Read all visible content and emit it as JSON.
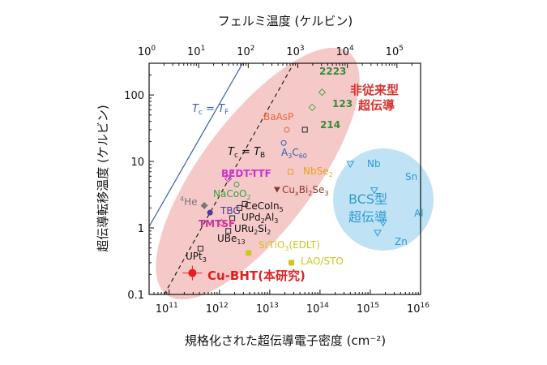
{
  "chart_data": {
    "type": "scatter",
    "title": "",
    "xlabel": "規格化された超伝導電子密度 (cm⁻²)",
    "ylabel": "超伝導転移温度 (ケルビン)",
    "top_xlabel": "フェルミ温度 (ケルビン)",
    "x_scale": "log",
    "y_scale": "log",
    "xlim": [
      40000000000.0,
      1e+16
    ],
    "ylim": [
      0.1,
      300
    ],
    "top_xlim": [
      1,
      300000
    ],
    "x_ticks": [
      {
        "value": 100000000000.0,
        "base": "10",
        "exp": "11"
      },
      {
        "value": 1000000000000.0,
        "base": "10",
        "exp": "12"
      },
      {
        "value": 10000000000000.0,
        "base": "10",
        "exp": "13"
      },
      {
        "value": 100000000000000.0,
        "base": "10",
        "exp": "14"
      },
      {
        "value": 1000000000000000.0,
        "base": "10",
        "exp": "15"
      },
      {
        "value": 1e+16,
        "base": "10",
        "exp": "16"
      }
    ],
    "y_ticks": [
      {
        "value": 0.1,
        "label": "0.1"
      },
      {
        "value": 1,
        "label": "1"
      },
      {
        "value": 10,
        "label": "10"
      },
      {
        "value": 100,
        "label": "100"
      }
    ],
    "top_ticks": [
      {
        "value": 1,
        "label": "10",
        "exp": "0"
      },
      {
        "value": 10,
        "label": "10",
        "exp": "1"
      },
      {
        "value": 100,
        "label": "10",
        "exp": "2"
      },
      {
        "value": 1000,
        "label": "10",
        "exp": "3"
      },
      {
        "value": 10000,
        "label": "10",
        "exp": "4"
      },
      {
        "value": 100000,
        "label": "10",
        "exp": "5"
      }
    ],
    "reference_lines": [
      {
        "label_main": "T",
        "label_sub": "c",
        "label_eq": " = ",
        "label_main2": "T",
        "label_sub2": "F",
        "color": "#3b5fa8",
        "style": "solid",
        "points": [
          [
            40000000000.0,
            1.05
          ],
          [
            2900000000000.0,
            300
          ]
        ]
      },
      {
        "label_main": "T",
        "label_sub": "c",
        "label_eq": " = ",
        "label_main2": "T",
        "label_sub2": "B",
        "color": "#222222",
        "style": "dashed",
        "points": [
          [
            80000000000.0,
            0.1
          ],
          [
            30000000000000.0,
            300
          ]
        ]
      }
    ],
    "regions": [
      {
        "label_line1": "非従来型",
        "label_line2": "超伝導",
        "color": "#f6c9c9",
        "text_color": "#d6332c"
      },
      {
        "label_line1": "BCS型",
        "label_line2": "超伝導",
        "color": "#bfe2f4",
        "text_color": "#2e9bd3"
      }
    ],
    "points": [
      {
        "name": "Cu-BHT(本研究)",
        "x": 290000000000.0,
        "y": 0.21,
        "color": "#e02020",
        "marker": "filled-circle-errorbar"
      },
      {
        "name": "UPt3",
        "sub": "3",
        "x": 420000000000.0,
        "y": 0.49,
        "color": "#222222",
        "marker": "open-square"
      },
      {
        "name": "TBG",
        "x": 650000000000.0,
        "y": 1.7,
        "color": "#4a3a9c",
        "marker": "filled-circle"
      },
      {
        "name": "TMTSF",
        "x": 1100000000000.0,
        "y": 1.2,
        "color": "#cc3399",
        "marker": "open-diamond"
      },
      {
        "name": "4He",
        "x": 500000000000.0,
        "y": 2.17,
        "color": "#777777",
        "marker": "filled-diamond"
      },
      {
        "name": "UBe13",
        "x": 1500000000000.0,
        "y": 0.9,
        "color": "#222222",
        "marker": "open-square"
      },
      {
        "name": "URu2Si2",
        "x": 1800000000000.0,
        "y": 1.4,
        "color": "#222222",
        "marker": "open-square"
      },
      {
        "name": "UPd2Al3",
        "x": 2500000000000.0,
        "y": 2.0,
        "color": "#222222",
        "marker": "open-square"
      },
      {
        "name": "CeCoIn5",
        "x": 3200000000000.0,
        "y": 2.3,
        "color": "#222222",
        "marker": "open-square"
      },
      {
        "name": "NaCoO2",
        "x": 2200000000000.0,
        "y": 4.5,
        "color": "#3aa040",
        "marker": "open-circle"
      },
      {
        "name": "BEDT-TTF",
        "x": 1500000000000.0,
        "y": 5.5,
        "color": "#cc33cc",
        "marker": "open-diamond"
      },
      {
        "name": "SrTiO3(EDLT)",
        "x": 3800000000000.0,
        "y": 0.42,
        "color": "#c8c820",
        "marker": "filled-square"
      },
      {
        "name": "LAO/STO",
        "x": 27000000000000.0,
        "y": 0.3,
        "color": "#c8c820",
        "marker": "filled-square"
      },
      {
        "name": "CuxBi2Se3",
        "x": 14000000000000.0,
        "y": 3.8,
        "color": "#8b3a2a",
        "marker": "filled-triangle-down"
      },
      {
        "name": "NbSe2",
        "x": 26000000000000.0,
        "y": 7.0,
        "color": "#e8a020",
        "marker": "open-square"
      },
      {
        "name": "A3C60",
        "x": 19000000000000.0,
        "y": 19,
        "color": "#3060b0",
        "marker": "open-circle"
      },
      {
        "name": "BaAsP",
        "x": 22000000000000.0,
        "y": 30,
        "color": "#e06a3a",
        "marker": "open-circle"
      },
      {
        "name": "214",
        "x": 50000000000000.0,
        "y": 30,
        "color": "#222222",
        "marker": "open-square"
      },
      {
        "name": "123",
        "x": 70000000000000.0,
        "y": 65,
        "color": "#4aa84a",
        "marker": "open-diamond"
      },
      {
        "name": "2223",
        "x": 110000000000000.0,
        "y": 110,
        "color": "#4aa84a",
        "marker": "open-diamond"
      },
      {
        "name": "Nb",
        "x": 400000000000000.0,
        "y": 9.2,
        "color": "#2e9bd3",
        "marker": "open-triangle-down"
      },
      {
        "name": "Sn",
        "x": 1200000000000000.0,
        "y": 3.7,
        "color": "#2e9bd3",
        "marker": "open-triangle-down"
      },
      {
        "name": "Al",
        "x": 1800000000000000.0,
        "y": 1.2,
        "color": "#2e9bd3",
        "marker": "open-triangle-down"
      },
      {
        "name": "Zn",
        "x": 1400000000000000.0,
        "y": 0.85,
        "color": "#2e9bd3",
        "marker": "open-triangle-down"
      }
    ],
    "labels": {
      "cubht": "Cu-BHT(本研究)",
      "upt3": [
        "UPt",
        "3"
      ],
      "tbg": "TBG",
      "tmtsf": "TMTSF",
      "he": [
        "4",
        "He"
      ],
      "ube13": [
        "UBe",
        "13"
      ],
      "uru2si2": [
        "URu",
        "2",
        "Si",
        "2"
      ],
      "upd2al3": [
        "UPd",
        "2",
        "Al",
        "3"
      ],
      "cecoin5": [
        "CeCoIn",
        "5"
      ],
      "nacoo2": [
        "NaCoO",
        "2"
      ],
      "bedt": "BEDT-TTF",
      "srtio3": [
        "SrTiO",
        "3",
        "(EDLT)"
      ],
      "laosto": "LAO/STO",
      "cubise": [
        "Cu",
        "x",
        "Bi",
        "2",
        "Se",
        "3"
      ],
      "nbse2": [
        "NbSe",
        "2"
      ],
      "a3c60": [
        "A",
        "3",
        "C",
        "60"
      ],
      "baasp": "BaAsP",
      "l214": "214",
      "l123": "123",
      "l2223": "2223",
      "nb": "Nb",
      "sn": "Sn",
      "al": "Al",
      "zn": "Zn"
    }
  }
}
